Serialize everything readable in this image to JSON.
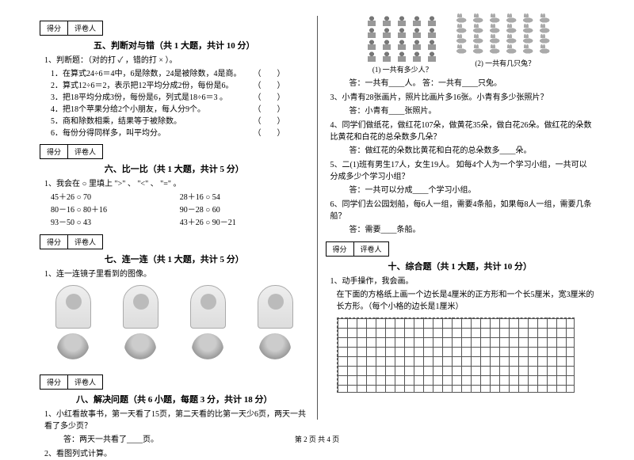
{
  "scorebox": {
    "a": "得分",
    "b": "评卷人"
  },
  "sec5": {
    "title": "五、判断对与错（共 1 大题，共计 10 分）",
    "lead": "1、判断题：（对的打 ✓ ，错的打 × ）。",
    "items": [
      "1．在算式24÷6＝4中，6是除数，24是被除数，4是商。",
      "2．算式12÷6＝2，表示把12平均分成2份，每份是6。",
      "3．把18平均分成3份，每份是6，列式是18÷6＝3 。",
      "4．把18个苹果分给2个小朋友，每人分9个。",
      "5．商和除数相乘，结果等于被除数。",
      "6．每份分得同样多，叫平均分。"
    ]
  },
  "sec6": {
    "title": "六、比一比（共 1 大题，共计 5 分）",
    "lead": "1、我会在 ○ 里填上 \">\" 、 \"<\" 、 \"=\" 。",
    "rows": [
      [
        "45＋26 ○ 70",
        "28＋16 ○ 54"
      ],
      [
        "80－16 ○ 80＋16",
        "90－28 ○ 60"
      ],
      [
        "93－50 ○ 43",
        "43＋26 ○ 90－21"
      ]
    ]
  },
  "sec7": {
    "title": "七、连一连（共 1 大题，共计 5 分）",
    "lead": "1、连一连镜子里看到的图像。"
  },
  "sec8": {
    "title": "八、解决问题（共 6 小题，每题 3 分，共计 18 分）",
    "q1": "1、小红看故事书，第一天看了15页，第二天看的比第一天少6页，两天一共看了多少页？",
    "a1": "答：两天一共看了____页。",
    "q2": "2、看图列式计算。",
    "cap1": "(1) 一共有多少人？",
    "cap2": "(2) 一共有几只兔？",
    "ans12": "答：一共有____人。        答：一共有____只兔。",
    "q3": "3、小青有28张画片，照片比画片多16张。小青有多少张照片？",
    "a3": "答：小青有____张照片。",
    "q4": "4、同学们做纸花，做红花107朵，做黄花35朵，做白花26朵。做红花的朵数比黄花和白花的总朵数多几朵？",
    "a4": "答：做红花的朵数比黄花和白花的总朵数多____朵。",
    "q5": "5、二(1)班有男生17人，女生19人。 如每4个人为一个学习小组，一共可以分成多少个学习小组？",
    "a5": "答：一共可以分成____个学习小组。",
    "q6": "6、同学们去公园划船，每6人一组，需要4条船，如果每8人一组，需要几条船？",
    "a6": "答：需要____条船。"
  },
  "sec10": {
    "title": "十、综合题（共 1 大题，共计 10 分）",
    "lead": "1、动手操作，我会画。",
    "body": "在下面的方格纸上画一个边长是4厘米的正方形和一个长5厘米，宽3厘米的长方形。（每个小格的边长是1厘米）"
  },
  "footer": "第 2 页 共 4 页"
}
